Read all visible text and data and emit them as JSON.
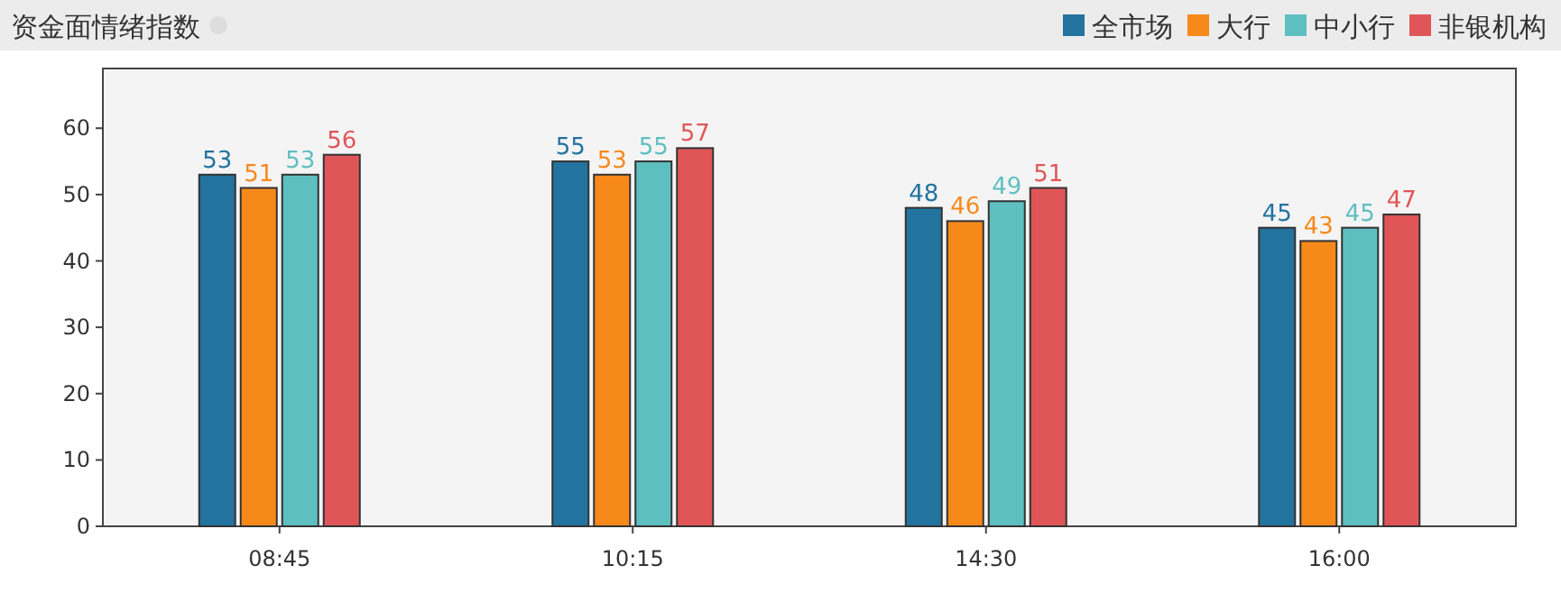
{
  "chart_data": {
    "type": "bar",
    "title": "资金面情绪指数",
    "categories": [
      "08:45",
      "10:15",
      "14:30",
      "16:00"
    ],
    "series": [
      {
        "name": "全市场",
        "color": "#23739f",
        "values": [
          53,
          55,
          48,
          45
        ]
      },
      {
        "name": "大行",
        "color": "#f7891b",
        "values": [
          51,
          53,
          46,
          43
        ]
      },
      {
        "name": "中小行",
        "color": "#5ebfc0",
        "values": [
          53,
          55,
          49,
          45
        ]
      },
      {
        "name": "非银机构",
        "color": "#e05658",
        "values": [
          56,
          57,
          51,
          47
        ]
      }
    ],
    "ylim": [
      0,
      69
    ],
    "yticks": [
      0,
      10,
      20,
      30,
      40,
      50,
      60
    ],
    "data_labels": true,
    "legend": "top right",
    "grid": false
  }
}
